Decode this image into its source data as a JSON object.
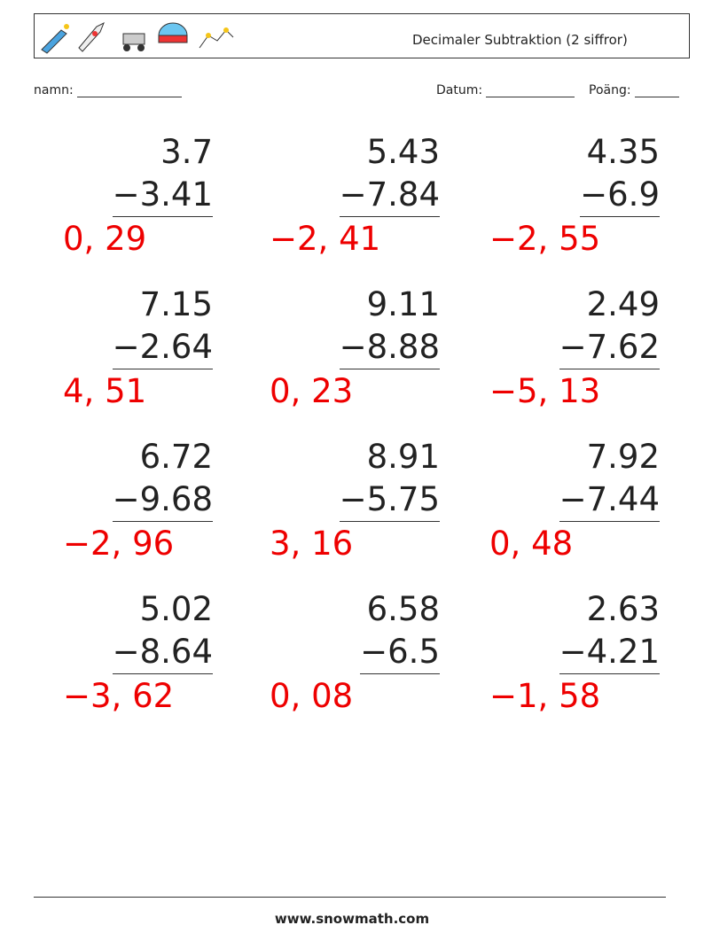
{
  "header": {
    "title": "Decimaler Subtraktion (2 siffror)"
  },
  "fields": {
    "name": "namn:",
    "date": "Datum:",
    "score": "Poäng:"
  },
  "problems": [
    {
      "top": "3.7",
      "bottom": "−3.41",
      "answer": "0, 29"
    },
    {
      "top": "5.43",
      "bottom": "−7.84",
      "answer": "−2, 41"
    },
    {
      "top": "4.35",
      "bottom": "−6.9",
      "answer": "−2, 55"
    },
    {
      "top": "7.15",
      "bottom": "−2.64",
      "answer": "4, 51"
    },
    {
      "top": "9.11",
      "bottom": "−8.88",
      "answer": "0, 23"
    },
    {
      "top": "2.49",
      "bottom": "−7.62",
      "answer": "−5, 13"
    },
    {
      "top": "6.72",
      "bottom": "−9.68",
      "answer": "−2, 96"
    },
    {
      "top": "8.91",
      "bottom": "−5.75",
      "answer": "3, 16"
    },
    {
      "top": "7.92",
      "bottom": "−7.44",
      "answer": "0, 48"
    },
    {
      "top": "5.02",
      "bottom": "−8.64",
      "answer": "−3, 62"
    },
    {
      "top": "6.58",
      "bottom": "−6.5",
      "answer": "0, 08"
    },
    {
      "top": "2.63",
      "bottom": "−4.21",
      "answer": "−1, 58"
    }
  ],
  "footer": {
    "url": "www.snowmath.com"
  }
}
